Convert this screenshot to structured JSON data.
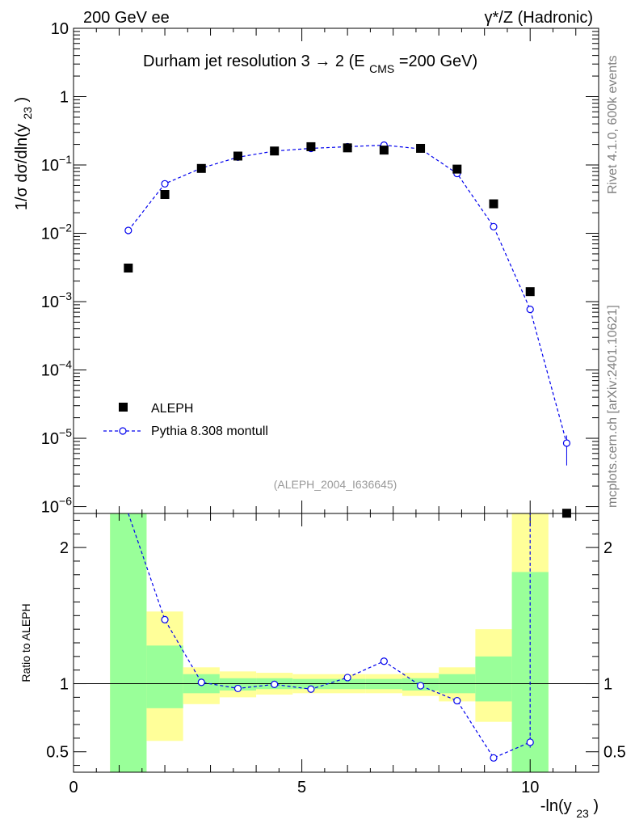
{
  "header": {
    "left": "200 GeV ee",
    "right_prefix": "γ*/Z (Hadronic)"
  },
  "side_labels": {
    "rivet": "Rivet 4.1.0,  600k events",
    "mcplots": "mcplots.cern.ch [arXiv:2401.10621]"
  },
  "chart_data": {
    "type": "scatter",
    "title_main": "Durham jet resolution 3",
    "title_arrow": "→",
    "title_rest": " 2 (E",
    "title_sub": "CMS",
    "title_end": "=200 GeV)",
    "analysis_tag": "(ALEPH_2004_I636645)",
    "ylabel_top": "1/σ  dσ/dln(y",
    "ylabel_top_sub": "23",
    "ylabel_top_end": ")",
    "ylabel_bottom": "Ratio to ALEPH",
    "xlabel": "-ln(y",
    "xlabel_sub": "23",
    "xlabel_end": ")",
    "xlim": [
      0,
      11.5
    ],
    "ylim_top_log10": [
      -6.1,
      1
    ],
    "ylim_ratio": [
      0.35,
      2.25
    ],
    "xticks": [
      0,
      5,
      10
    ],
    "yticks_top": [
      {
        "exp": 1,
        "label": "10",
        "sup": ""
      },
      {
        "exp": 0,
        "label": "1",
        "sup": ""
      },
      {
        "exp": -1,
        "label": "10",
        "sup": "−1"
      },
      {
        "exp": -2,
        "label": "10",
        "sup": "−2"
      },
      {
        "exp": -3,
        "label": "10",
        "sup": "−3"
      },
      {
        "exp": -4,
        "label": "10",
        "sup": "−4"
      },
      {
        "exp": -5,
        "label": "10",
        "sup": "−5"
      },
      {
        "exp": -6,
        "label": "10",
        "sup": "−6"
      }
    ],
    "yticks_ratio": [
      {
        "value": 0.5,
        "label": "0.5"
      },
      {
        "value": 1,
        "label": "1"
      },
      {
        "value": 2,
        "label": "2"
      }
    ],
    "legend": [
      {
        "name": "ALEPH",
        "style": "black-square"
      },
      {
        "name": "Pythia 8.308 montull",
        "style": "blue-dashed-circle"
      }
    ],
    "series": [
      {
        "name": "ALEPH",
        "x": [
          1.2,
          2.0,
          2.8,
          3.6,
          4.4,
          5.2,
          6.0,
          6.8,
          7.6,
          8.4,
          9.2,
          10.0,
          10.8
        ],
        "values": [
          0.0031,
          0.037,
          0.089,
          0.135,
          0.16,
          0.185,
          0.178,
          0.165,
          0.175,
          0.087,
          0.027,
          0.0014,
          8e-07
        ]
      },
      {
        "name": "Pythia 8.308 montull",
        "x": [
          1.2,
          2.0,
          2.8,
          3.6,
          4.4,
          5.2,
          6.0,
          6.8,
          7.6,
          8.4,
          9.2,
          10.0,
          10.8
        ],
        "values": [
          0.011,
          0.053,
          0.09,
          0.13,
          0.16,
          0.175,
          0.185,
          0.195,
          0.172,
          0.075,
          0.0125,
          0.00077,
          8.5e-06
        ],
        "last_point_err": [
          4e-06,
          1.1e-05
        ]
      }
    ],
    "ratio_bands": [
      {
        "x0": 0.8,
        "x1": 1.6,
        "y_lo": 0.35,
        "y_hi": 2.25,
        "g_lo": 0.35,
        "g_hi": 2.25
      },
      {
        "x0": 1.6,
        "x1": 2.4,
        "y_lo": 0.58,
        "y_hi": 1.53,
        "g_lo": 0.82,
        "g_hi": 1.28
      },
      {
        "x0": 2.4,
        "x1": 3.2,
        "y_lo": 0.85,
        "y_hi": 1.12,
        "g_lo": 0.93,
        "g_hi": 1.07
      },
      {
        "x0": 3.2,
        "x1": 4.0,
        "y_lo": 0.9,
        "y_hi": 1.09,
        "g_lo": 0.95,
        "g_hi": 1.04
      },
      {
        "x0": 4.0,
        "x1": 4.8,
        "y_lo": 0.92,
        "y_hi": 1.08,
        "g_lo": 0.96,
        "g_hi": 1.04
      },
      {
        "x0": 4.8,
        "x1": 5.6,
        "y_lo": 0.93,
        "y_hi": 1.07,
        "g_lo": 0.96,
        "g_hi": 1.035
      },
      {
        "x0": 5.6,
        "x1": 6.4,
        "y_lo": 0.93,
        "y_hi": 1.07,
        "g_lo": 0.96,
        "g_hi": 1.035
      },
      {
        "x0": 6.4,
        "x1": 7.2,
        "y_lo": 0.93,
        "y_hi": 1.07,
        "g_lo": 0.96,
        "g_hi": 1.035
      },
      {
        "x0": 7.2,
        "x1": 8.0,
        "y_lo": 0.91,
        "y_hi": 1.08,
        "g_lo": 0.95,
        "g_hi": 1.04
      },
      {
        "x0": 8.0,
        "x1": 8.8,
        "y_lo": 0.87,
        "y_hi": 1.12,
        "g_lo": 0.93,
        "g_hi": 1.07
      },
      {
        "x0": 8.8,
        "x1": 9.6,
        "y_lo": 0.72,
        "y_hi": 1.4,
        "g_lo": 0.87,
        "g_hi": 1.2
      },
      {
        "x0": 9.6,
        "x1": 10.4,
        "y_lo": 0.35,
        "y_hi": 2.25,
        "g_lo": 0.35,
        "g_hi": 1.82
      }
    ],
    "ratio_points": {
      "x": [
        1.2,
        2.0,
        2.8,
        3.6,
        4.4,
        5.2,
        6.0,
        6.8,
        7.6,
        8.4,
        9.2,
        10.0
      ],
      "values": [
        3.5,
        1.47,
        1.01,
        0.965,
        0.995,
        0.96,
        1.045,
        1.165,
        0.985,
        0.875,
        0.455,
        0.57
      ],
      "last_point_err": [
        0.53,
        0.61
      ]
    },
    "colors": {
      "data": "#000000",
      "mc": "#0000ee",
      "band_yellow": "#ffff99",
      "band_green": "#99ff99",
      "side_text": "#808080"
    }
  }
}
